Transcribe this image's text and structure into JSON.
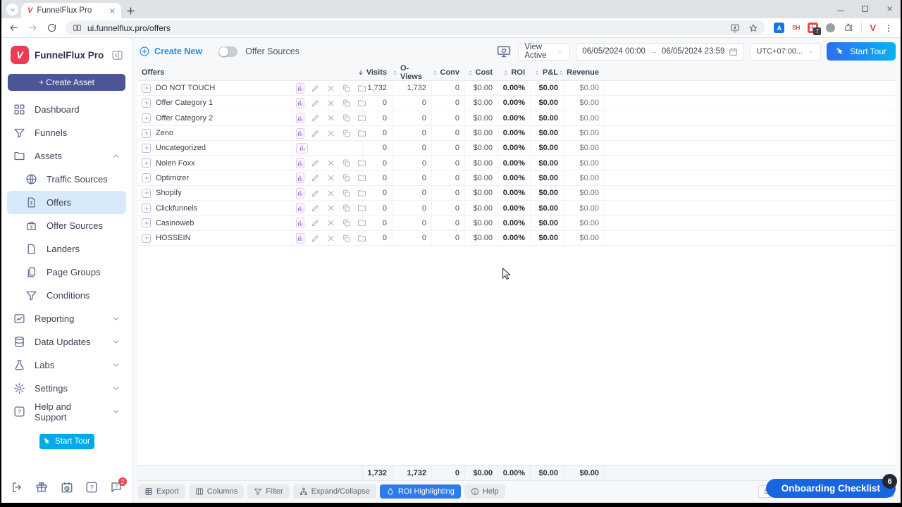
{
  "browser": {
    "tab_title": "FunnelFlux Pro",
    "url": "ui.funnelflux.pro/offers",
    "extensions": {
      "translate_label": "A",
      "sh_label": "SH",
      "grid_badge": "7",
      "profile_label": "V"
    }
  },
  "sidebar": {
    "brand": "FunnelFlux Pro",
    "create_asset_label": "+ Create Asset",
    "items_top": [
      {
        "label": "Dashboard",
        "icon": "grid"
      },
      {
        "label": "Funnels",
        "icon": "funnel"
      },
      {
        "label": "Assets",
        "icon": "folder",
        "chevron": "up"
      }
    ],
    "items_sub": [
      {
        "label": "Traffic Sources",
        "icon": "globe"
      },
      {
        "label": "Offers",
        "icon": "doc-dollar",
        "active": true
      },
      {
        "label": "Offer Sources",
        "icon": "briefcase"
      },
      {
        "label": "Landers",
        "icon": "page"
      },
      {
        "label": "Page Groups",
        "icon": "pages"
      },
      {
        "label": "Conditions",
        "icon": "funnel"
      }
    ],
    "items_bottom": [
      {
        "label": "Reporting",
        "icon": "chart-box",
        "chevron": "down"
      },
      {
        "label": "Data Updates",
        "icon": "database",
        "chevron": "down"
      },
      {
        "label": "Labs",
        "icon": "flask",
        "chevron": "down"
      },
      {
        "label": "Settings",
        "icon": "gear",
        "chevron": "down"
      },
      {
        "label": "Help and Support",
        "icon": "question-square",
        "chevron": "down"
      }
    ],
    "start_tour_label": "Start Tour",
    "footer_icons": [
      "logout",
      "gift",
      "calendar-clock",
      "question-square",
      "chat-question"
    ],
    "help_badge": "2"
  },
  "header": {
    "create_new_label": "Create New",
    "toggle_label": "Offer Sources",
    "view_select_value": "View Active",
    "date_start": "06/05/2024 00:00",
    "date_end": "06/05/2024 23:59",
    "timezone_value": "UTC+07:00...",
    "start_tour_label": "Start Tour"
  },
  "table": {
    "first_col_label": "Offers",
    "columns": [
      {
        "label": "Visits",
        "sort": "desc"
      },
      {
        "label": "O-Views",
        "sort": "both"
      },
      {
        "label": "Conv",
        "sort": "both"
      },
      {
        "label": "Cost",
        "sort": "both"
      },
      {
        "label": "ROI",
        "sort": "both"
      },
      {
        "label": "P&L",
        "sort": "both"
      },
      {
        "label": "Revenue",
        "sort": "both"
      }
    ],
    "rows": [
      {
        "name": "DO NOT TOUCH",
        "actions": true,
        "cells": [
          "1,732",
          "1,732",
          "0",
          "$0.00",
          "0.00%",
          "$0.00",
          "$0.00"
        ]
      },
      {
        "name": "Offer Category 1",
        "actions": true,
        "cells": [
          "0",
          "0",
          "0",
          "$0.00",
          "0.00%",
          "$0.00",
          "$0.00"
        ]
      },
      {
        "name": "Offer Category 2",
        "actions": true,
        "cells": [
          "0",
          "0",
          "0",
          "$0.00",
          "0.00%",
          "$0.00",
          "$0.00"
        ]
      },
      {
        "name": "Zeno",
        "actions": true,
        "cells": [
          "0",
          "0",
          "0",
          "$0.00",
          "0.00%",
          "$0.00",
          "$0.00"
        ]
      },
      {
        "name": "Uncategorized",
        "actions": false,
        "cells": [
          "0",
          "0",
          "0",
          "$0.00",
          "0.00%",
          "$0.00",
          "$0.00"
        ]
      },
      {
        "name": "Nolen Foxx",
        "actions": true,
        "cells": [
          "0",
          "0",
          "0",
          "$0.00",
          "0.00%",
          "$0.00",
          "$0.00"
        ]
      },
      {
        "name": "Optimizer",
        "actions": true,
        "cells": [
          "0",
          "0",
          "0",
          "$0.00",
          "0.00%",
          "$0.00",
          "$0.00"
        ]
      },
      {
        "name": "Shopify",
        "actions": true,
        "cells": [
          "0",
          "0",
          "0",
          "$0.00",
          "0.00%",
          "$0.00",
          "$0.00"
        ]
      },
      {
        "name": "Clickfunnels",
        "actions": true,
        "cells": [
          "0",
          "0",
          "0",
          "$0.00",
          "0.00%",
          "$0.00",
          "$0.00"
        ]
      },
      {
        "name": "Casinoweb",
        "actions": true,
        "cells": [
          "0",
          "0",
          "0",
          "$0.00",
          "0.00%",
          "$0.00",
          "$0.00"
        ]
      },
      {
        "name": "HOSSEIN",
        "actions": true,
        "cells": [
          "0",
          "0",
          "0",
          "$0.00",
          "0.00%",
          "$0.00",
          "$0.00"
        ]
      }
    ],
    "totals": [
      "1,732",
      "1,732",
      "0",
      "$0.00",
      "0.00%",
      "$0.00",
      "$0.00"
    ]
  },
  "footer": {
    "tools": [
      {
        "label": "Export",
        "icon": "export"
      },
      {
        "label": "Columns",
        "icon": "columns"
      },
      {
        "label": "Filter",
        "icon": "funnel"
      },
      {
        "label": "Expand/Collapse",
        "icon": "tree"
      },
      {
        "label": "ROI Highlighting",
        "icon": "drop",
        "active": true
      },
      {
        "label": "Help",
        "icon": "info"
      }
    ],
    "show_label": "Show 50",
    "onboarding_label": "Onboarding Checklist",
    "onboarding_badge": "6"
  },
  "colors": {
    "brand_red": "#ea3d55",
    "indigo_button": "#4c5596",
    "active_item_bg": "#d8eafa",
    "link_blue": "#1f8ee9",
    "cyan_button": "#00a9e8",
    "roi_button_blue": "#2e7ce9",
    "onboarding_blue": "#1766e0",
    "start_tour_gradient": [
      "#2f6df0",
      "#06b2f2"
    ]
  }
}
